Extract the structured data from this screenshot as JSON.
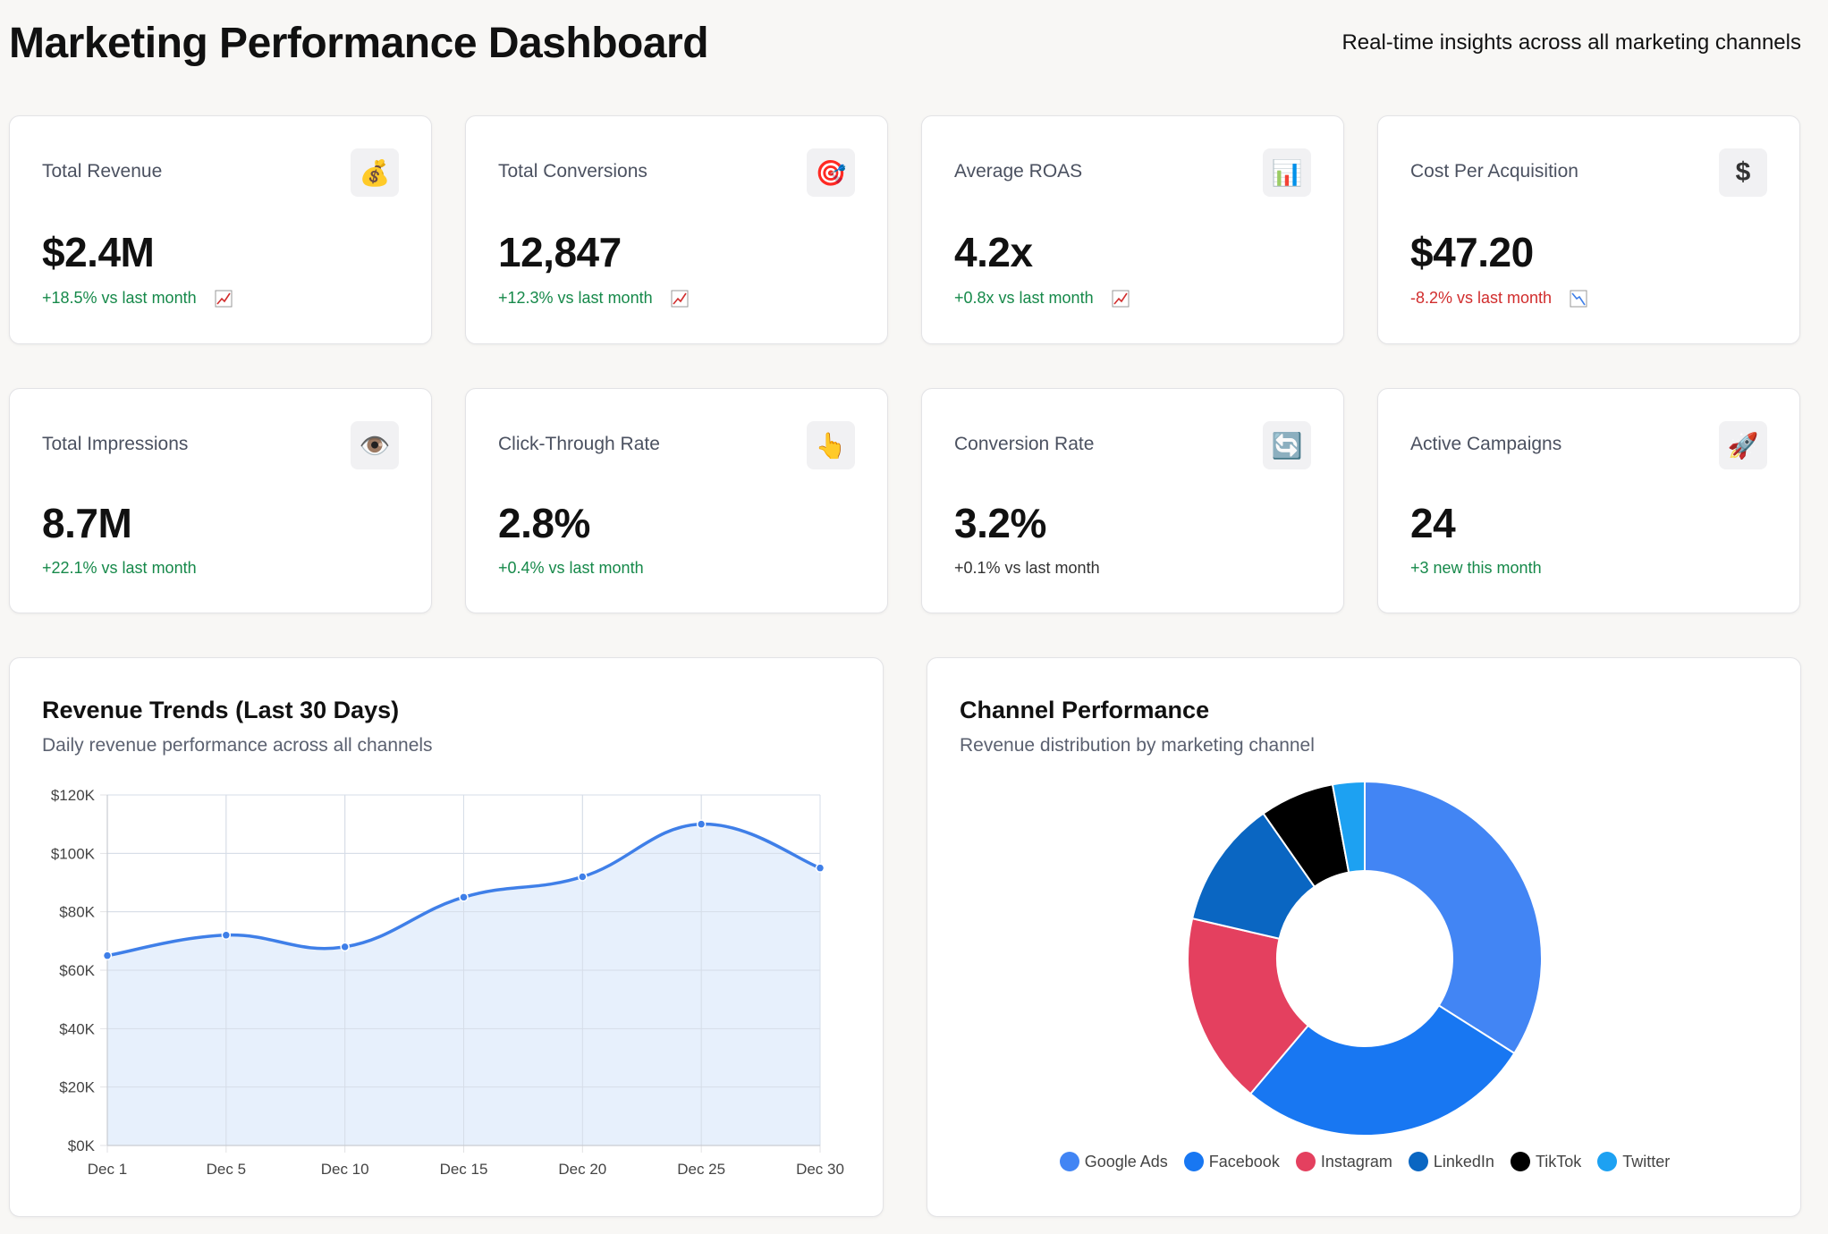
{
  "header": {
    "title": "Marketing Performance Dashboard",
    "subtitle": "Real-time insights across all marketing channels"
  },
  "metrics": [
    {
      "label": "Total Revenue",
      "value": "$2.4M",
      "change": "+18.5% vs last month",
      "status": "pos",
      "icon": "money-bag-icon",
      "glyph": "💰",
      "trend": "up"
    },
    {
      "label": "Total Conversions",
      "value": "12,847",
      "change": "+12.3% vs last month",
      "status": "pos",
      "icon": "target-icon",
      "glyph": "🎯",
      "trend": "up"
    },
    {
      "label": "Average ROAS",
      "value": "4.2x",
      "change": "+0.8x vs last month",
      "status": "pos",
      "icon": "bar-chart-icon",
      "glyph": "📊",
      "trend": "up"
    },
    {
      "label": "Cost Per Acquisition",
      "value": "$47.20",
      "change": "-8.2% vs last month",
      "status": "neg",
      "icon": "dollar-icon",
      "glyph": "$",
      "trend": "down"
    },
    {
      "label": "Total Impressions",
      "value": "8.7M",
      "change": "+22.1% vs last month",
      "status": "pos",
      "icon": "eye-icon",
      "glyph": "👁️",
      "trend": ""
    },
    {
      "label": "Click-Through Rate",
      "value": "2.8%",
      "change": "+0.4% vs last month",
      "status": "pos",
      "icon": "pointing-hand-icon",
      "glyph": "👆",
      "trend": ""
    },
    {
      "label": "Conversion Rate",
      "value": "3.2%",
      "change": "+0.1% vs last month",
      "status": "neu",
      "icon": "refresh-icon",
      "glyph": "🔄",
      "trend": ""
    },
    {
      "label": "Active Campaigns",
      "value": "24",
      "change": "+3 new this month",
      "status": "pos",
      "icon": "rocket-icon",
      "glyph": "🚀",
      "trend": ""
    }
  ],
  "colors": {
    "positive": "#16894a",
    "negative": "#d12d2d",
    "line": "#3f7fe8",
    "area": "#e4eefc"
  },
  "revenue_chart": {
    "title": "Revenue Trends (Last 30 Days)",
    "subtitle": "Daily revenue performance across all channels"
  },
  "channel_chart": {
    "title": "Channel Performance",
    "subtitle": "Revenue distribution by marketing channel"
  },
  "chart_data": [
    {
      "type": "area",
      "title": "Revenue Trends (Last 30 Days)",
      "categories": [
        "Dec 1",
        "Dec 5",
        "Dec 10",
        "Dec 15",
        "Dec 20",
        "Dec 25",
        "Dec 30"
      ],
      "series": [
        {
          "values": [
            65000,
            72000,
            68000,
            85000,
            92000,
            110000,
            95000
          ]
        }
      ],
      "ylim": [
        0,
        120000
      ],
      "yticks": [
        "$0K",
        "$20K",
        "$40K",
        "$60K",
        "$80K",
        "$100K",
        "$120K"
      ],
      "grid": true
    },
    {
      "type": "pie",
      "title": "Channel Performance",
      "donut": true,
      "legend_position": "bottom",
      "slices": [
        {
          "name": "Google Ads",
          "value": 35,
          "color": "#4285f4"
        },
        {
          "name": "Facebook",
          "value": 28,
          "color": "#1877f2"
        },
        {
          "name": "Instagram",
          "value": 18,
          "color": "#e4405f"
        },
        {
          "name": "LinkedIn",
          "value": 12,
          "color": "#0a66c2"
        },
        {
          "name": "TikTok",
          "value": 7,
          "color": "#000000"
        },
        {
          "name": "Twitter",
          "value": 3,
          "color": "#1da1f2"
        }
      ]
    }
  ]
}
